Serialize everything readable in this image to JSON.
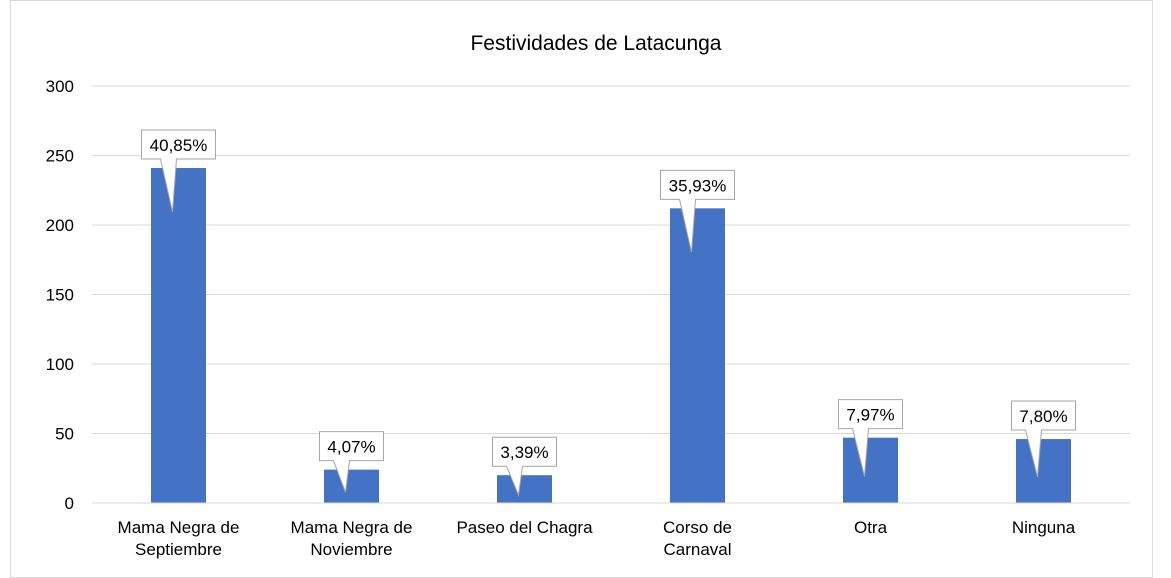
{
  "chart_data": {
    "type": "bar",
    "title": "Festividades de Latacunga",
    "categories": [
      "Mama Negra de\nSeptiembre",
      "Mama Negra de\nNoviembre",
      "Paseo del Chagra",
      "Corso de\nCarnaval",
      "Otra",
      "Ninguna"
    ],
    "values": [
      241,
      24,
      20,
      212,
      47,
      46
    ],
    "data_labels": [
      {
        "value": 40.85,
        "label": "40,85%"
      },
      {
        "value": 4.07,
        "label": "4,07%"
      },
      {
        "value": 3.39,
        "label": "3,39%"
      },
      {
        "value": 35.93,
        "label": "35,93%"
      },
      {
        "value": 7.97,
        "label": "7,97%"
      },
      {
        "value": 7.8,
        "label": "7,80%"
      }
    ],
    "color": "#4472c4",
    "ylim": [
      0,
      300
    ],
    "yticks": [
      0,
      50,
      100,
      150,
      200,
      250,
      300
    ],
    "grid": true
  }
}
